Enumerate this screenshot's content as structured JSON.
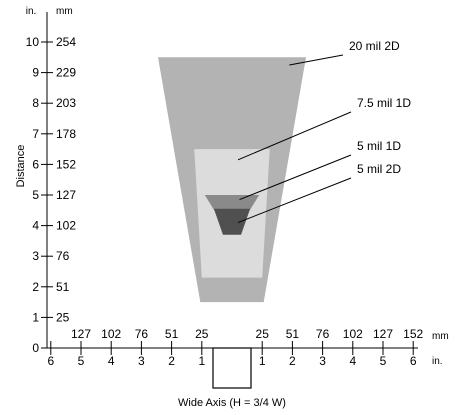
{
  "chart_data": {
    "type": "area",
    "ylabel": "Distance",
    "xlabel": "Wide Axis (H = 3/4 W)",
    "y_units": {
      "in": "in.",
      "mm": "mm"
    },
    "x_units": {
      "in": "in.",
      "mm": "mm"
    },
    "y_ticks": [
      {
        "in": "0",
        "mm": ""
      },
      {
        "in": "1",
        "mm": "25"
      },
      {
        "in": "2",
        "mm": "51"
      },
      {
        "in": "3",
        "mm": "76"
      },
      {
        "in": "4",
        "mm": "102"
      },
      {
        "in": "5",
        "mm": "127"
      },
      {
        "in": "6",
        "mm": "152"
      },
      {
        "in": "7",
        "mm": "178"
      },
      {
        "in": "8",
        "mm": "203"
      },
      {
        "in": "9",
        "mm": "229"
      },
      {
        "in": "10",
        "mm": "254"
      }
    ],
    "x_ticks_left": [
      {
        "x": -6,
        "in": "6",
        "mm": ""
      },
      {
        "x": -5,
        "in": "5",
        "mm": "127"
      },
      {
        "x": -4,
        "in": "4",
        "mm": "102"
      },
      {
        "x": -3,
        "in": "3",
        "mm": "76"
      },
      {
        "x": -2,
        "in": "2",
        "mm": "51"
      },
      {
        "x": -1,
        "in": "1",
        "mm": "25"
      }
    ],
    "x_ticks_right": [
      {
        "x": 1,
        "in": "1",
        "mm": "25"
      },
      {
        "x": 2,
        "in": "2",
        "mm": "51"
      },
      {
        "x": 3,
        "in": "3",
        "mm": "76"
      },
      {
        "x": 4,
        "in": "4",
        "mm": "102"
      },
      {
        "x": 5,
        "in": "5",
        "mm": "127"
      },
      {
        "x": 6,
        "in": "6",
        "mm": "152"
      }
    ],
    "xlim": [
      -6,
      6
    ],
    "ylim": [
      0,
      10.5
    ],
    "zones": [
      {
        "name": "20 mil 2D",
        "color": "#b3b3b3",
        "near": {
          "distance": 1.5,
          "half_width": 1.05
        },
        "far": {
          "distance": 9.5,
          "half_width": 2.45
        },
        "pointer": {
          "x": 1.9,
          "y": 9.25
        }
      },
      {
        "name": "7.5 mil 1D",
        "color": "#dcdcdc",
        "near": {
          "distance": 2.3,
          "half_width": 1.0
        },
        "far": {
          "distance": 6.5,
          "half_width": 1.25
        },
        "pointer": {
          "x": 0.2,
          "y": 6.15
        }
      },
      {
        "name": "5 mil 1D",
        "color": "#8a8a8a",
        "near": {
          "distance": 4.2,
          "half_width": 0.4
        },
        "far": {
          "distance": 5.0,
          "half_width": 0.9
        },
        "pointer": {
          "x": 0.25,
          "y": 4.85
        }
      },
      {
        "name": "5 mil 2D",
        "color": "#505050",
        "near": {
          "distance": 3.7,
          "half_width": 0.3
        },
        "far": {
          "distance": 4.55,
          "half_width": 0.6
        },
        "pointer": {
          "x": 0.2,
          "y": 4.1
        }
      }
    ]
  }
}
